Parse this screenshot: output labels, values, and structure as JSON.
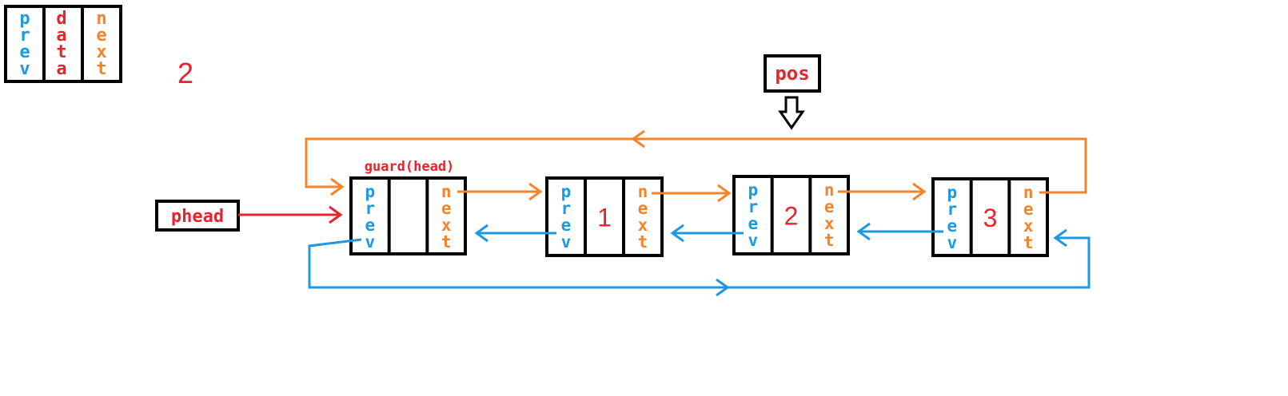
{
  "colors": {
    "prev": "#1b9ae0",
    "data": "#e8232c",
    "next": "#f5832a",
    "box": "#000000"
  },
  "legend": {
    "prev": "prev",
    "data": "data",
    "next": "next"
  },
  "top_number": "2",
  "pos_label": "pos",
  "phead_label": "phead",
  "guard_label": "guard(head)",
  "nodes": [
    {
      "prev": "prev",
      "data": "",
      "next": "next"
    },
    {
      "prev": "prev",
      "data": "1",
      "next": "next"
    },
    {
      "prev": "prev",
      "data": "2",
      "next": "next"
    },
    {
      "prev": "prev",
      "data": "3",
      "next": "next"
    }
  ]
}
